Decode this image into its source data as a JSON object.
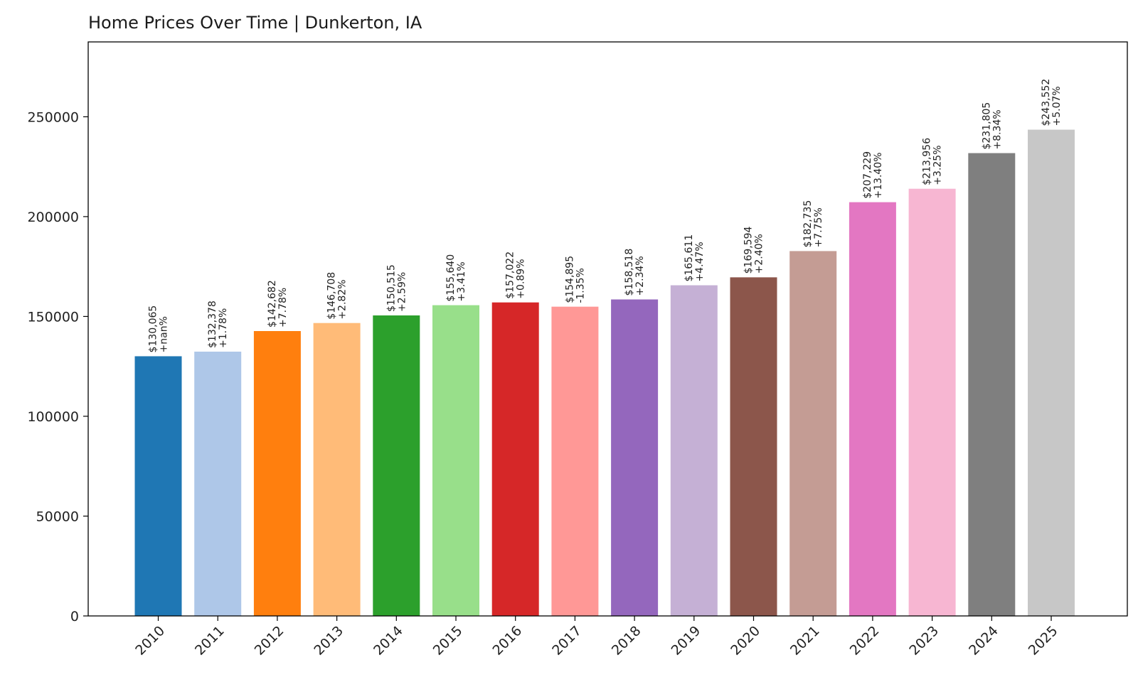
{
  "chart_data": {
    "type": "bar",
    "title": "Home Prices Over Time | Dunkerton, IA",
    "xlabel": "",
    "ylabel": "",
    "ylim": [
      0,
      287500
    ],
    "yticks": [
      0,
      50000,
      100000,
      150000,
      200000,
      250000
    ],
    "ytick_labels": [
      "0",
      "50000",
      "100000",
      "150000",
      "200000",
      "250000"
    ],
    "grid": false,
    "categories": [
      "2010",
      "2011",
      "2012",
      "2013",
      "2014",
      "2015",
      "2016",
      "2017",
      "2018",
      "2019",
      "2020",
      "2021",
      "2022",
      "2023",
      "2024",
      "2025"
    ],
    "values": [
      130065,
      132378,
      142682,
      146708,
      150515,
      155640,
      157022,
      154895,
      158518,
      165611,
      169594,
      182735,
      207229,
      213956,
      231805,
      243552
    ],
    "value_labels": [
      "$130,065",
      "$132,378",
      "$142,682",
      "$146,708",
      "$150,515",
      "$155,640",
      "$157,022",
      "$154,895",
      "$158,518",
      "$165,611",
      "$169,594",
      "$182,735",
      "$207,229",
      "$213,956",
      "$231,805",
      "$243,552"
    ],
    "change_labels": [
      "+nan%",
      "+1.78%",
      "+7.78%",
      "+2.82%",
      "+2.59%",
      "+3.41%",
      "+0.89%",
      "-1.35%",
      "+2.34%",
      "+4.47%",
      "+2.40%",
      "+7.75%",
      "+13.40%",
      "+3.25%",
      "+8.34%",
      "+5.07%"
    ],
    "colors": [
      "#1f77b4",
      "#aec7e8",
      "#ff7f0e",
      "#ffbb78",
      "#2ca02c",
      "#98df8a",
      "#d62728",
      "#ff9896",
      "#9467bd",
      "#c5b0d5",
      "#8c564b",
      "#c49c94",
      "#e377c2",
      "#f7b6d2",
      "#7f7f7f",
      "#c7c7c7"
    ]
  }
}
